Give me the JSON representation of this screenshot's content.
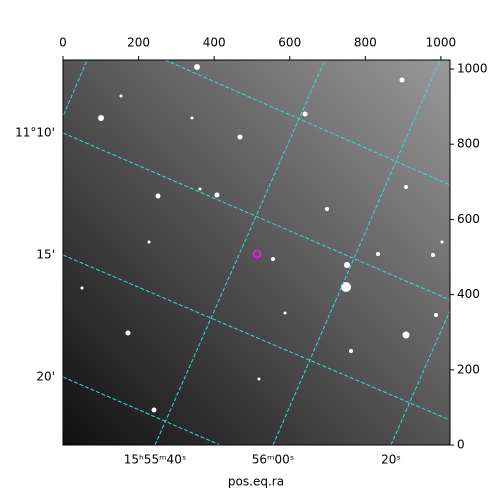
{
  "chart_data": {
    "type": "image",
    "xlabel": "pos.eq.ra",
    "xlim": [
      0,
      1024
    ],
    "xticks": [
      0,
      200,
      400,
      600,
      800,
      1000
    ],
    "ylim": [
      0,
      1024
    ],
    "yticks": [
      0,
      200,
      400,
      600,
      800,
      1000
    ],
    "ra_ticks": [
      "15ʰ55ᵐ40ˢ",
      "56ᵐ00ˢ",
      "20ˢ"
    ],
    "dec_ticks": [
      "11°10'",
      "15'",
      "20'"
    ],
    "grid_color": "#33dddd"
  }
}
